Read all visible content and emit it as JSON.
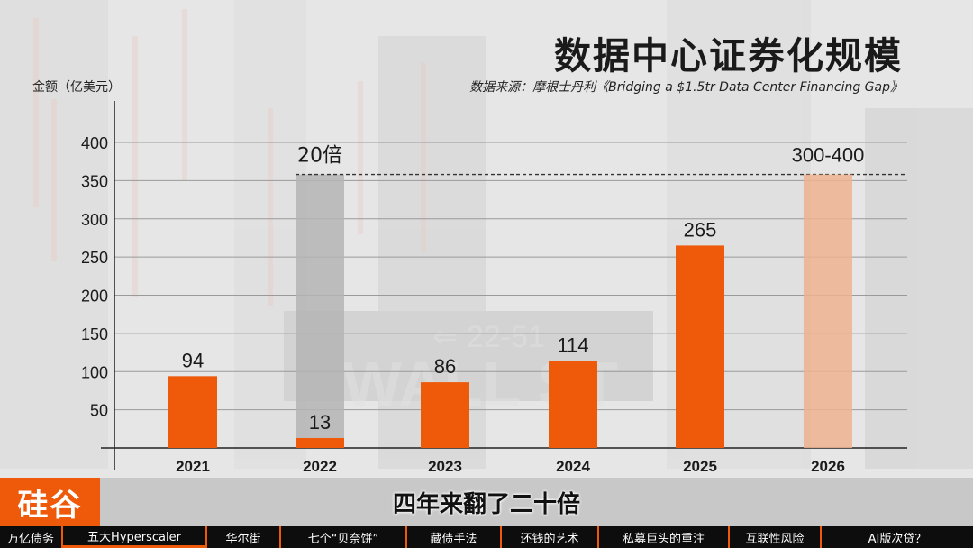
{
  "title": "数据中心证券化规模",
  "source": "数据来源：摩根士丹利《Bridging a $1.5tr Data Center Financing Gap》",
  "y_axis_label": "金额（亿美元）",
  "colors": {
    "bar": "#ef5a0a",
    "projection_bar": "#efb290",
    "reference_bar": "#b4b4b4",
    "accent": "#ef5a0a"
  },
  "chart_data": {
    "type": "bar",
    "categories": [
      "2021",
      "2022",
      "2023",
      "2024",
      "2025",
      "2026"
    ],
    "values": [
      94,
      13,
      86,
      114,
      265,
      350
    ],
    "data_labels": [
      "94",
      "13",
      "86",
      "114",
      "265",
      "300-400"
    ],
    "ylim": [
      0,
      400
    ],
    "yticks": [
      50,
      100,
      150,
      200,
      250,
      300,
      350,
      400
    ],
    "reference_line": 358,
    "annotation": "20倍",
    "grid": true,
    "legend": "none"
  },
  "logo_text": "硅谷",
  "subtitle": "四年来翻了二十倍",
  "nav": {
    "items": [
      "万亿债务",
      "五大Hyperscaler",
      "华尔街",
      "七个“贝奈饼”",
      "藏债手法",
      "还钱的艺术",
      "私募巨头的重注",
      "互联性风险",
      "AI版次贷？"
    ],
    "active_index": 1
  }
}
